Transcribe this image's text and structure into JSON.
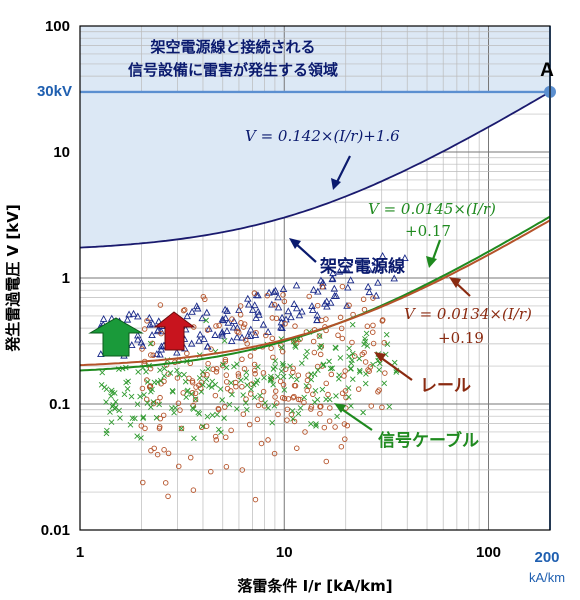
{
  "chart_data": {
    "type": "scatter",
    "title": "",
    "xlabel": "落雷条件 I/r [kA/km]",
    "ylabel": "発生雷過電圧 V [kV]",
    "xscale": "log",
    "yscale": "log",
    "xlim": [
      1,
      200
    ],
    "ylim": [
      0.01,
      100
    ],
    "x_ticks": [
      "1",
      "10",
      "100"
    ],
    "y_ticks": [
      "0.01",
      "0.1",
      "1",
      "10",
      "100"
    ],
    "grid": true,
    "extra_x_tick": {
      "label": "200",
      "unit": "kA/km"
    },
    "reference_line": {
      "label": "30kV",
      "value": 30,
      "point_label": "A",
      "point_x": 200
    },
    "region_note_line1": "架空電源線と接続される",
    "region_note_line2": "信号設備に雷害が発生する領域",
    "series": [
      {
        "name": "架空電源線",
        "marker": "triangle",
        "color": "#1a2a8a",
        "slope": 0.142,
        "intercept": 1.6,
        "equation": "V = 0.142×(I/r)+1.6"
      },
      {
        "name": "信号ケーブル",
        "marker": "x",
        "color": "#2f9a2f",
        "slope": 0.0145,
        "intercept": 0.17,
        "equation_line1": "V = 0.0145×(I/r)",
        "equation_line2": "+0.17"
      },
      {
        "name": "レール",
        "marker": "circle",
        "color": "#b5532a",
        "slope": 0.0134,
        "intercept": 0.19,
        "equation_line1": "V = 0.0134×(I/r)",
        "equation_line2": "+0.19"
      }
    ]
  },
  "colors": {
    "region_fill": "#dce8f5",
    "ref_line": "#5b8fd0",
    "point_a": "#5b8fd0",
    "arrow_green": "#1a9a3a",
    "arrow_red": "#c8141e"
  }
}
